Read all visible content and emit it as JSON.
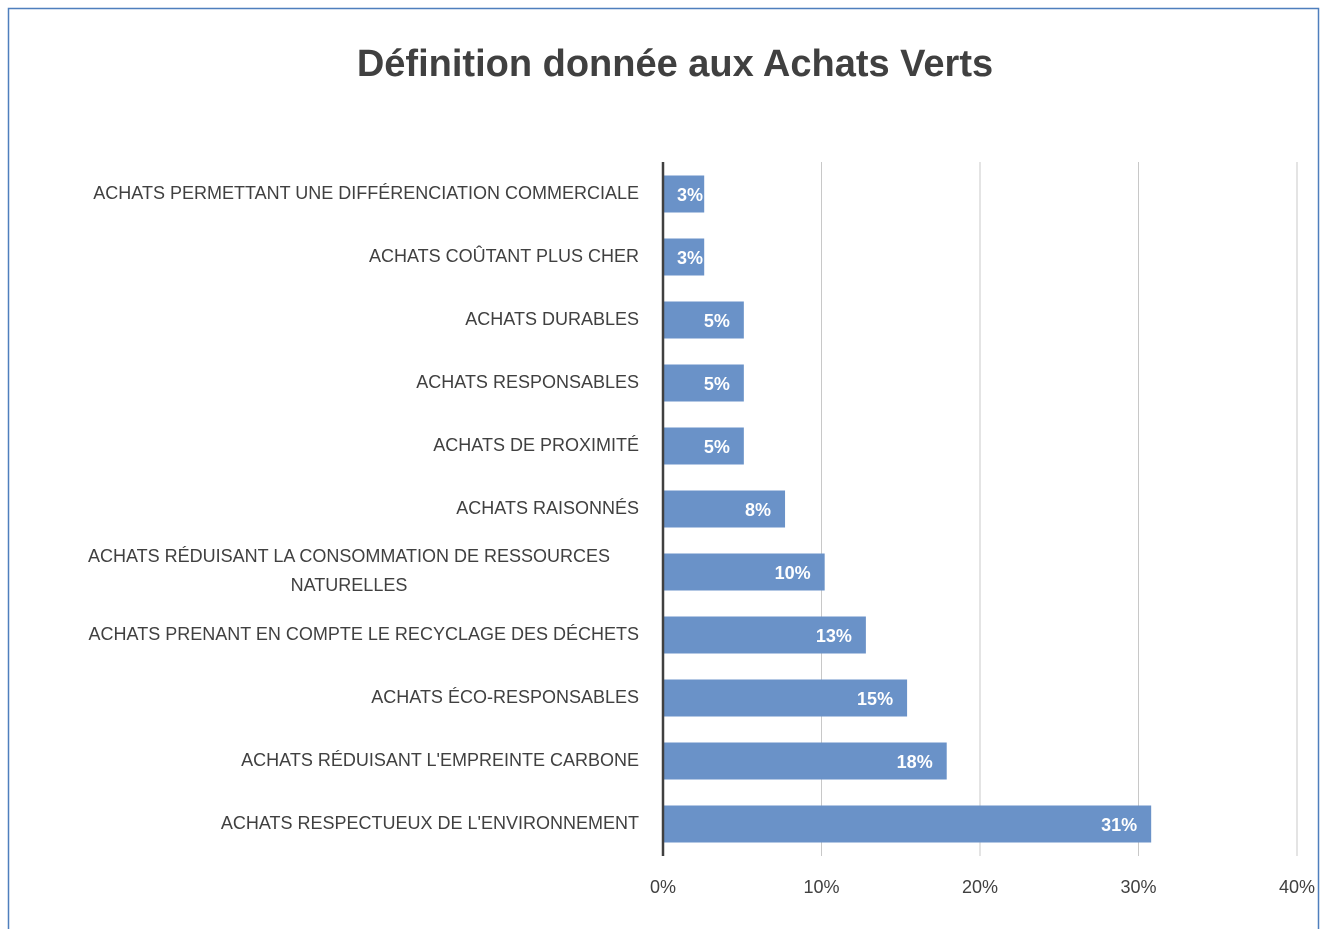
{
  "chart_data": {
    "type": "bar",
    "orientation": "horizontal",
    "title": "Définition donnée aux Achats Verts",
    "categories": [
      "ACHATS PERMETTANT UNE DIFFÉRENCIATION COMMERCIALE",
      "ACHATS COÛTANT PLUS CHER",
      "ACHATS DURABLES",
      "ACHATS RESPONSABLES",
      "ACHATS DE PROXIMITÉ",
      "ACHATS RAISONNÉS",
      "ACHATS RÉDUISANT LA CONSOMMATION DE RESSOURCES\nNATURELLES",
      "ACHATS PRENANT EN COMPTE LE RECYCLAGE DES DÉCHETS",
      "ACHATS ÉCO-RESPONSABLES",
      "ACHATS RÉDUISANT L'EMPREINTE CARBONE",
      "ACHATS RESPECTUEUX DE L'ENVIRONNEMENT"
    ],
    "values": [
      2.6,
      2.6,
      5.1,
      5.1,
      5.1,
      7.7,
      10.2,
      12.8,
      15.4,
      17.9,
      30.8
    ],
    "value_labels": [
      "3%",
      "3%",
      "5%",
      "5%",
      "5%",
      "8%",
      "10%",
      "13%",
      "15%",
      "18%",
      "31%"
    ],
    "color": "#6a92c8",
    "xlim": [
      0,
      40
    ],
    "xticks": [
      {
        "value": 0,
        "label": "0%"
      },
      {
        "value": 10,
        "label": "10%"
      },
      {
        "value": 20,
        "label": "20%"
      },
      {
        "value": 30,
        "label": "30%"
      },
      {
        "value": 40,
        "label": "40%"
      }
    ],
    "grid": true
  }
}
